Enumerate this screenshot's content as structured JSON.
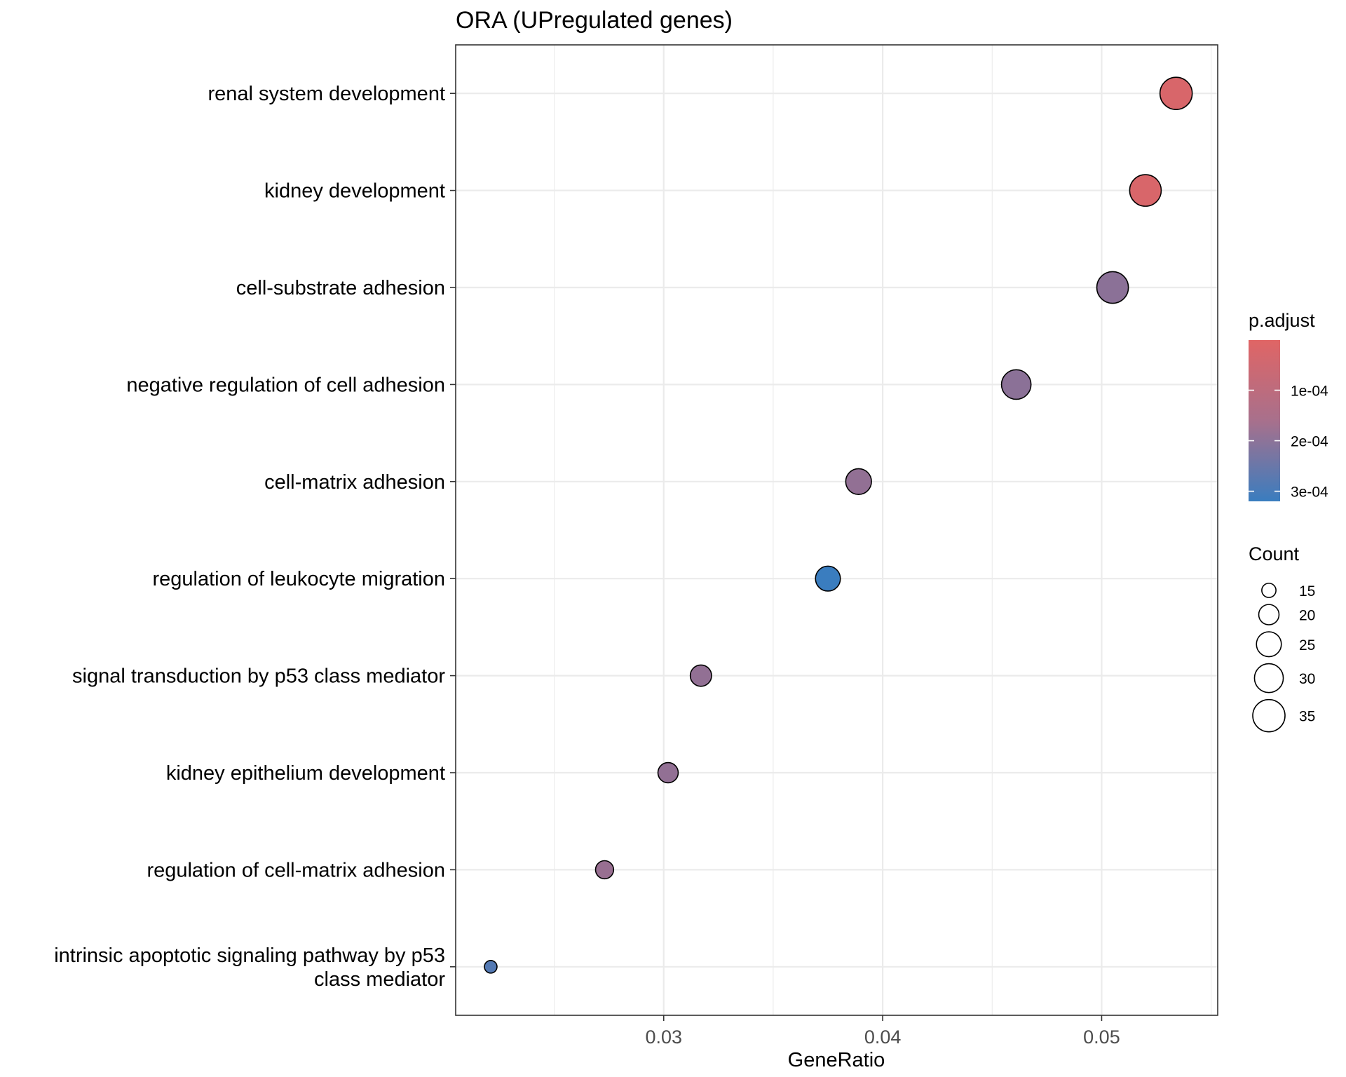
{
  "chart_data": {
    "type": "scatter",
    "title": "ORA (UPregulated genes)",
    "xlabel": "GeneRatio",
    "ylabel": "",
    "xlim": [
      0.0205,
      0.0553
    ],
    "xticks": [
      0.03,
      0.04,
      0.05
    ],
    "xtick_labels": [
      "0.03",
      "0.04",
      "0.05"
    ],
    "grid": true,
    "points": [
      {
        "term": [
          "renal system development"
        ],
        "gene_ratio": 0.0534,
        "count": 35,
        "p_adjust": 2e-05
      },
      {
        "term": [
          "kidney development"
        ],
        "gene_ratio": 0.052,
        "count": 34,
        "p_adjust": 2e-05
      },
      {
        "term": [
          "cell-substrate adhesion"
        ],
        "gene_ratio": 0.0505,
        "count": 34,
        "p_adjust": 0.00019
      },
      {
        "term": [
          "negative regulation of cell adhesion"
        ],
        "gene_ratio": 0.0461,
        "count": 31,
        "p_adjust": 0.00019
      },
      {
        "term": [
          "cell-matrix adhesion"
        ],
        "gene_ratio": 0.0389,
        "count": 26,
        "p_adjust": 0.00018
      },
      {
        "term": [
          "regulation of leukocyte migration"
        ],
        "gene_ratio": 0.0375,
        "count": 25,
        "p_adjust": 0.00033
      },
      {
        "term": [
          "signal transduction by p53 class mediator"
        ],
        "gene_ratio": 0.0317,
        "count": 21,
        "p_adjust": 0.00018
      },
      {
        "term": [
          "kidney epithelium development"
        ],
        "gene_ratio": 0.0302,
        "count": 20,
        "p_adjust": 0.00018
      },
      {
        "term": [
          "regulation of cell-matrix adhesion"
        ],
        "gene_ratio": 0.0273,
        "count": 18,
        "p_adjust": 0.00017
      },
      {
        "term": [
          "intrinsic apoptotic signaling pathway by p53",
          "class mediator"
        ],
        "gene_ratio": 0.0221,
        "count": 14,
        "p_adjust": 0.00028
      }
    ],
    "color_legend": {
      "title": "p.adjust",
      "low_color": "#E06565",
      "mid_color": "#9E6E8E",
      "high_color": "#3A7DBF",
      "range": [
        7e-07,
        0.00032
      ],
      "ticks": [
        0.0001,
        0.0002,
        0.0003
      ],
      "tick_labels": [
        "1e-04",
        "2e-04",
        "3e-04"
      ]
    },
    "size_legend": {
      "title": "Count",
      "values": [
        15,
        20,
        25,
        30,
        35
      ],
      "labels": [
        "15",
        "20",
        "25",
        "30",
        "35"
      ]
    }
  }
}
